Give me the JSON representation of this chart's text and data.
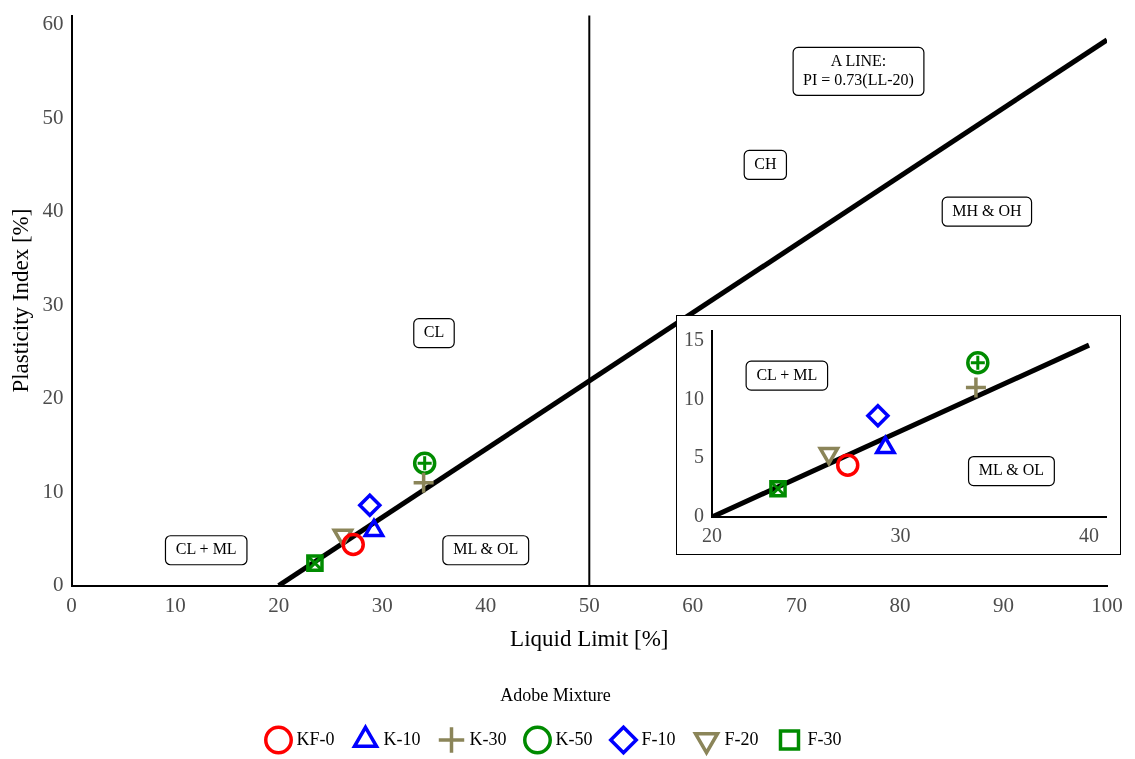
{
  "chart_data": [
    {
      "type": "scatter",
      "xlabel": "Liquid Limit [%]",
      "ylabel": "Plasticity Index [%]",
      "legend_title": "Adobe Mixture",
      "legend": "bottom",
      "xlim": [
        0,
        100
      ],
      "xticks": [
        0,
        10,
        20,
        30,
        40,
        50,
        60,
        70,
        80,
        90,
        100
      ],
      "ylim": [
        0,
        61
      ],
      "yticks": [
        0,
        10,
        20,
        30,
        40,
        50,
        60
      ],
      "series": [
        {
          "name": "KF-0",
          "color": "#ff0000",
          "marker": "circle",
          "x": [
            27.2
          ],
          "values": [
            4.4
          ]
        },
        {
          "name": "K-10",
          "color": "#0000ff",
          "marker": "triangle",
          "x": [
            29.2
          ],
          "values": [
            5.9
          ]
        },
        {
          "name": "K-30",
          "color": "#8b8559",
          "marker": "cross",
          "x": [
            34.0
          ],
          "values": [
            11.0
          ]
        },
        {
          "name": "K-50",
          "color": "#008b00",
          "marker": "circle-plus",
          "x": [
            34.1
          ],
          "values": [
            13.1
          ]
        },
        {
          "name": "F-10",
          "color": "#0000ff",
          "marker": "diamond",
          "x": [
            28.8
          ],
          "values": [
            8.6
          ]
        },
        {
          "name": "F-20",
          "color": "#8b8559",
          "marker": "triangle-down",
          "x": [
            26.2
          ],
          "values": [
            5.4
          ]
        },
        {
          "name": "F-30",
          "color": "#008b00",
          "marker": "square-x",
          "x": [
            23.5
          ],
          "values": [
            2.4
          ]
        },
        {
          "type": "line",
          "color": "#000000",
          "marker": "none",
          "x": [
            20,
            100
          ],
          "values": [
            0,
            58.4
          ]
        }
      ],
      "ref_lines": [
        {
          "axis": "x",
          "value": 50,
          "color": "#000000"
        }
      ],
      "annotations": [
        "A LINE:\nPI = 0.73(LL-20)",
        "CH",
        "MH & OH",
        "CL",
        "CL + ML",
        "ML & OL"
      ]
    },
    {
      "type": "scatter",
      "legend": false,
      "xlim": [
        20,
        40.9
      ],
      "xticks": [
        20,
        30,
        40
      ],
      "ylim": [
        0,
        15.8
      ],
      "yticks": [
        0,
        5,
        10,
        15
      ],
      "series": [
        {
          "color": "#ff0000",
          "marker": "circle",
          "x": [
            27.2
          ],
          "values": [
            4.4
          ]
        },
        {
          "color": "#0000ff",
          "marker": "triangle",
          "x": [
            29.2
          ],
          "values": [
            5.9
          ]
        },
        {
          "color": "#8b8559",
          "marker": "cross",
          "x": [
            34.0
          ],
          "values": [
            11.0
          ]
        },
        {
          "color": "#008b00",
          "marker": "circle-plus",
          "x": [
            34.1
          ],
          "values": [
            13.1
          ]
        },
        {
          "color": "#0000ff",
          "marker": "diamond",
          "x": [
            28.8
          ],
          "values": [
            8.6
          ]
        },
        {
          "color": "#8b8559",
          "marker": "triangle-down",
          "x": [
            26.2
          ],
          "values": [
            5.4
          ]
        },
        {
          "color": "#008b00",
          "marker": "square-x",
          "x": [
            23.5
          ],
          "values": [
            2.4
          ]
        },
        {
          "type": "line",
          "color": "#000000",
          "marker": "none",
          "x": [
            20,
            40
          ],
          "values": [
            0,
            14.6
          ]
        }
      ],
      "annotations": [
        "CL + ML",
        "ML & OL"
      ]
    }
  ]
}
